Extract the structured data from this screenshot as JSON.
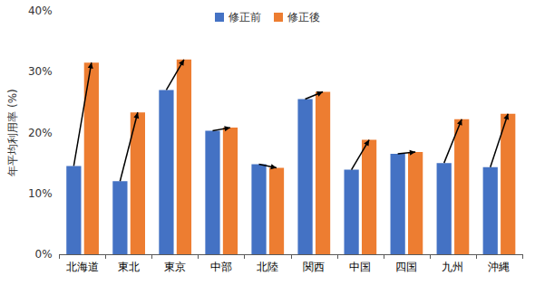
{
  "chart_data": {
    "type": "bar",
    "y_label": "年平均利用率 (%)",
    "categories": [
      "北海道",
      "東北",
      "東京",
      "中部",
      "北陸",
      "関西",
      "中国",
      "四国",
      "九州",
      "沖縄"
    ],
    "series": [
      {
        "name": "修正前",
        "color": "#4472c4",
        "values": [
          14.5,
          12.0,
          27.0,
          20.3,
          14.8,
          25.5,
          13.9,
          16.5,
          15.0,
          14.3
        ]
      },
      {
        "name": "修正後",
        "color": "#ed7d31",
        "values": [
          31.5,
          23.3,
          32.0,
          20.8,
          14.2,
          26.7,
          18.8,
          16.8,
          22.2,
          23.1
        ]
      }
    ],
    "ylim": [
      0,
      40
    ],
    "yticks": [
      {
        "value": 0,
        "label": "0%"
      },
      {
        "value": 10,
        "label": "10%"
      },
      {
        "value": 20,
        "label": "20%"
      },
      {
        "value": 30,
        "label": "30%"
      },
      {
        "value": 40,
        "label": "40%"
      }
    ],
    "grid": false,
    "legend": "top"
  }
}
